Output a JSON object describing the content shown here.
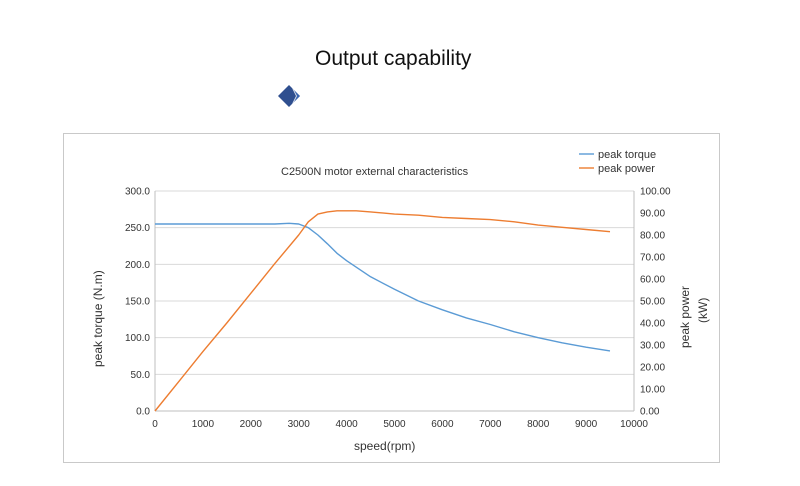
{
  "page": {
    "heading": "Output capability",
    "heading_icon": "diamond-icon",
    "accent": "#2f4f8f"
  },
  "chart_data": {
    "type": "line",
    "title": "C2500N motor  external characteristics",
    "xlabel": "speed(rpm)",
    "ylabel_left": "peak torque (N.m)",
    "ylabel_right_line1": "peak power",
    "ylabel_right_line2": "(kW)",
    "xlim": [
      0,
      10000
    ],
    "ylim_left": [
      0,
      300
    ],
    "ylim_right": [
      0,
      100
    ],
    "x_ticks": [
      "0",
      "1000",
      "2000",
      "3000",
      "4000",
      "5000",
      "6000",
      "7000",
      "8000",
      "9000",
      "10000"
    ],
    "y_left_ticks": [
      "0.0",
      "50.0",
      "100.0",
      "150.0",
      "200.0",
      "250.0",
      "300.0"
    ],
    "y_right_ticks": [
      "0.00",
      "10.00",
      "20.00",
      "30.00",
      "40.00",
      "50.00",
      "60.00",
      "70.00",
      "80.00",
      "90.00",
      "100.00"
    ],
    "grid": true,
    "legend_position": "top-right",
    "series": [
      {
        "name": "peak torque",
        "axis": "left",
        "color": "#5b9bd5",
        "x": [
          0,
          1000,
          2000,
          2500,
          2800,
          3000,
          3200,
          3400,
          3600,
          3800,
          4000,
          4500,
          5000,
          5500,
          6000,
          6500,
          7000,
          7500,
          8000,
          8500,
          9000,
          9500
        ],
        "y": [
          255,
          255,
          255,
          255,
          256,
          255,
          250,
          240,
          228,
          215,
          205,
          183,
          166,
          150,
          138,
          127,
          118,
          108,
          100,
          93,
          87,
          82
        ]
      },
      {
        "name": "peak power",
        "axis": "right",
        "color": "#ed7d31",
        "x": [
          0,
          500,
          1000,
          1500,
          2000,
          2500,
          3000,
          3200,
          3400,
          3600,
          3800,
          4000,
          4200,
          4500,
          5000,
          5500,
          6000,
          6500,
          7000,
          7500,
          8000,
          8500,
          9000,
          9500
        ],
        "y": [
          0,
          13.5,
          27,
          40,
          53.5,
          67,
          80,
          86,
          89.5,
          90.5,
          91,
          91,
          91,
          90.5,
          89.5,
          89,
          88,
          87.5,
          87,
          86,
          84.5,
          83.5,
          82.5,
          81.5
        ]
      }
    ]
  }
}
